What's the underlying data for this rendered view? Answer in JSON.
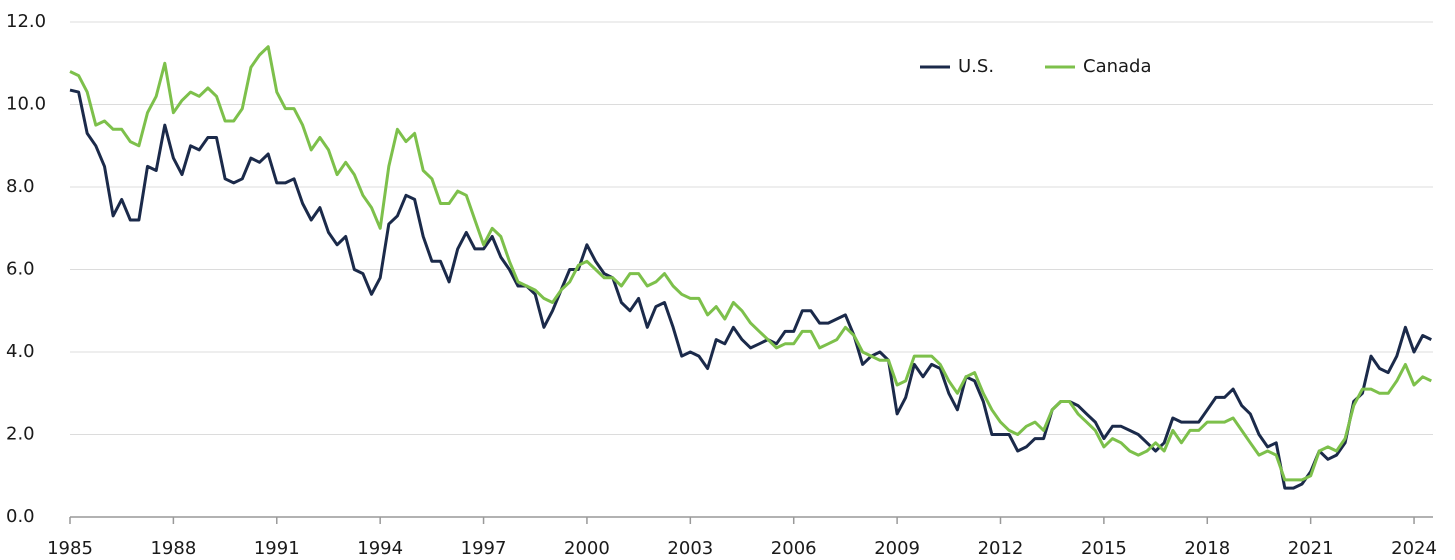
{
  "chart_data": {
    "type": "line",
    "x": [
      1985,
      1985.25,
      1985.5,
      1985.75,
      1986,
      1986.25,
      1986.5,
      1986.75,
      1987,
      1987.25,
      1987.5,
      1987.75,
      1988,
      1988.25,
      1988.5,
      1988.75,
      1989,
      1989.25,
      1989.5,
      1989.75,
      1990,
      1990.25,
      1990.5,
      1990.75,
      1991,
      1991.25,
      1991.5,
      1991.75,
      1992,
      1992.25,
      1992.5,
      1992.75,
      1993,
      1993.25,
      1993.5,
      1993.75,
      1994,
      1994.25,
      1994.5,
      1994.75,
      1995,
      1995.25,
      1995.5,
      1995.75,
      1996,
      1996.25,
      1996.5,
      1996.75,
      1997,
      1997.25,
      1997.5,
      1997.75,
      1998,
      1998.25,
      1998.5,
      1998.75,
      1999,
      1999.25,
      1999.5,
      1999.75,
      2000,
      2000.25,
      2000.5,
      2000.75,
      2001,
      2001.25,
      2001.5,
      2001.75,
      2002,
      2002.25,
      2002.5,
      2002.75,
      2003,
      2003.25,
      2003.5,
      2003.75,
      2004,
      2004.25,
      2004.5,
      2004.75,
      2005,
      2005.25,
      2005.5,
      2005.75,
      2006,
      2006.25,
      2006.5,
      2006.75,
      2007,
      2007.25,
      2007.5,
      2007.75,
      2008,
      2008.25,
      2008.5,
      2008.75,
      2009,
      2009.25,
      2009.5,
      2009.75,
      2010,
      2010.25,
      2010.5,
      2010.75,
      2011,
      2011.25,
      2011.5,
      2011.75,
      2012,
      2012.25,
      2012.5,
      2012.75,
      2013,
      2013.25,
      2013.5,
      2013.75,
      2014,
      2014.25,
      2014.5,
      2014.75,
      2015,
      2015.25,
      2015.5,
      2015.75,
      2016,
      2016.25,
      2016.5,
      2016.75,
      2017,
      2017.25,
      2017.5,
      2017.75,
      2018,
      2018.25,
      2018.5,
      2018.75,
      2019,
      2019.25,
      2019.5,
      2019.75,
      2020,
      2020.25,
      2020.5,
      2020.75,
      2021,
      2021.25,
      2021.5,
      2021.75,
      2022,
      2022.25,
      2022.5,
      2022.75,
      2023,
      2023.25,
      2023.5,
      2023.75,
      2024,
      2024.25,
      2024.5
    ],
    "series": [
      {
        "name": "U.S.",
        "color": "#1b2a4a",
        "values": [
          10.35,
          10.3,
          9.3,
          9.0,
          8.5,
          7.3,
          7.7,
          7.2,
          7.2,
          8.5,
          8.4,
          9.5,
          8.7,
          8.3,
          9.0,
          8.9,
          9.2,
          9.2,
          8.2,
          8.1,
          8.2,
          8.7,
          8.6,
          8.8,
          8.1,
          8.1,
          8.2,
          7.6,
          7.2,
          7.5,
          6.9,
          6.6,
          6.8,
          6.0,
          5.9,
          5.4,
          5.8,
          7.1,
          7.3,
          7.8,
          7.7,
          6.8,
          6.2,
          6.2,
          5.7,
          6.5,
          6.9,
          6.5,
          6.5,
          6.8,
          6.3,
          6.0,
          5.6,
          5.6,
          5.4,
          4.6,
          5.0,
          5.5,
          6.0,
          6.0,
          6.6,
          6.2,
          5.9,
          5.8,
          5.2,
          5.0,
          5.3,
          4.6,
          5.1,
          5.2,
          4.6,
          3.9,
          4.0,
          3.9,
          3.6,
          4.3,
          4.2,
          4.6,
          4.3,
          4.1,
          4.2,
          4.3,
          4.2,
          4.5,
          4.5,
          5.0,
          5.0,
          4.7,
          4.7,
          4.8,
          4.9,
          4.4,
          3.7,
          3.9,
          4.0,
          3.8,
          2.5,
          2.9,
          3.7,
          3.4,
          3.7,
          3.6,
          3.0,
          2.6,
          3.4,
          3.3,
          2.8,
          2.0,
          2.0,
          2.0,
          1.6,
          1.7,
          1.9,
          1.9,
          2.6,
          2.8,
          2.8,
          2.7,
          2.5,
          2.3,
          1.9,
          2.2,
          2.2,
          2.1,
          2.0,
          1.8,
          1.6,
          1.8,
          2.4,
          2.3,
          2.3,
          2.3,
          2.6,
          2.9,
          2.9,
          3.1,
          2.7,
          2.5,
          2.0,
          1.7,
          1.8,
          0.7,
          0.7,
          0.8,
          1.1,
          1.6,
          1.4,
          1.5,
          1.8,
          2.8,
          3.0,
          3.9,
          3.6,
          3.5,
          3.9,
          4.6,
          4.0,
          4.4,
          4.3
        ]
      },
      {
        "name": "Canada",
        "color": "#7dc04b",
        "values": [
          10.8,
          10.7,
          10.3,
          9.5,
          9.6,
          9.4,
          9.4,
          9.1,
          9.0,
          9.8,
          10.2,
          11.0,
          9.8,
          10.1,
          10.3,
          10.2,
          10.4,
          10.2,
          9.6,
          9.6,
          9.9,
          10.9,
          11.2,
          11.4,
          10.3,
          9.9,
          9.9,
          9.5,
          8.9,
          9.2,
          8.9,
          8.3,
          8.6,
          8.3,
          7.8,
          7.5,
          7.0,
          8.5,
          9.4,
          9.1,
          9.3,
          8.4,
          8.2,
          7.6,
          7.6,
          7.9,
          7.8,
          7.2,
          6.6,
          7.0,
          6.8,
          6.2,
          5.7,
          5.6,
          5.5,
          5.3,
          5.2,
          5.5,
          5.7,
          6.1,
          6.2,
          6.0,
          5.8,
          5.8,
          5.6,
          5.9,
          5.9,
          5.6,
          5.7,
          5.9,
          5.6,
          5.4,
          5.3,
          5.3,
          4.9,
          5.1,
          4.8,
          5.2,
          5.0,
          4.7,
          4.5,
          4.3,
          4.1,
          4.2,
          4.2,
          4.5,
          4.5,
          4.1,
          4.2,
          4.3,
          4.6,
          4.4,
          4.0,
          3.9,
          3.8,
          3.8,
          3.2,
          3.3,
          3.9,
          3.9,
          3.9,
          3.7,
          3.3,
          3.0,
          3.4,
          3.5,
          3.0,
          2.6,
          2.3,
          2.1,
          2.0,
          2.2,
          2.3,
          2.1,
          2.6,
          2.8,
          2.8,
          2.5,
          2.3,
          2.1,
          1.7,
          1.9,
          1.8,
          1.6,
          1.5,
          1.6,
          1.8,
          1.6,
          2.1,
          1.8,
          2.1,
          2.1,
          2.3,
          2.3,
          2.3,
          2.4,
          2.1,
          1.8,
          1.5,
          1.6,
          1.5,
          0.9,
          0.9,
          0.9,
          1.0,
          1.6,
          1.7,
          1.6,
          1.9,
          2.7,
          3.1,
          3.1,
          3.0,
          3.0,
          3.3,
          3.7,
          3.2,
          3.4,
          3.3
        ]
      }
    ],
    "xlim": [
      1985,
      2024.55
    ],
    "xticks": [
      1985,
      1988,
      1991,
      1994,
      1997,
      2000,
      2003,
      2006,
      2009,
      2012,
      2015,
      2018,
      2021,
      2024
    ],
    "ylim": [
      0,
      12
    ],
    "yticks": [
      {
        "value": 0,
        "label": "0.0"
      },
      {
        "value": 2,
        "label": "2.0"
      },
      {
        "value": 4,
        "label": "4.0"
      },
      {
        "value": 6,
        "label": "6.0"
      },
      {
        "value": 8,
        "label": "8.0"
      },
      {
        "value": 10,
        "label": "10.0"
      },
      {
        "value": 12,
        "label": "12.0"
      }
    ],
    "grid": true,
    "legend": "top-right"
  }
}
